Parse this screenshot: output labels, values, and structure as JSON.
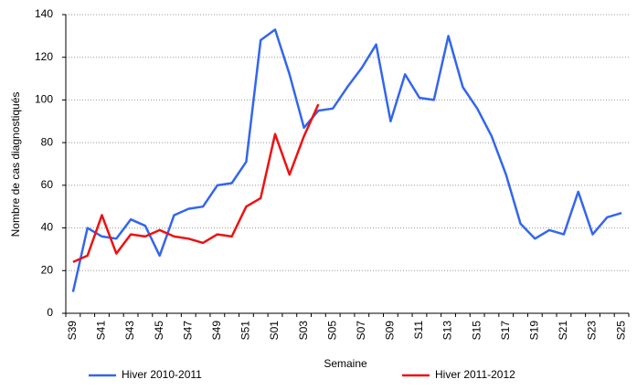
{
  "chart_data": {
    "type": "line",
    "xlabel": "Semaine",
    "ylabel": "Nombre de cas diagnostiqués",
    "categories": [
      "S39",
      null,
      "S41",
      null,
      "S43",
      null,
      "S45",
      null,
      "S47",
      null,
      "S49",
      null,
      "S51",
      null,
      "S01",
      null,
      "S03",
      null,
      "S05",
      null,
      "S07",
      null,
      "S09",
      null,
      "S11",
      null,
      "S13",
      null,
      "S15",
      null,
      "S17",
      null,
      "S19",
      null,
      "S21",
      null,
      "S23",
      null,
      "S25"
    ],
    "series": [
      {
        "name": "Hiver 2010-2011",
        "color": "#3366ee",
        "values": [
          10,
          40,
          36,
          35,
          44,
          41,
          27,
          46,
          49,
          50,
          60,
          61,
          71,
          128,
          133,
          112,
          87,
          95,
          96,
          106,
          115,
          126,
          90,
          112,
          101,
          100,
          130,
          106,
          96,
          83,
          65,
          42,
          35,
          39,
          37,
          57,
          37,
          45,
          47
        ]
      },
      {
        "name": "Hiver 2011-2012",
        "color": "#ee1111",
        "values": [
          24,
          27,
          46,
          28,
          37,
          36,
          39,
          36,
          35,
          33,
          37,
          36,
          50,
          54,
          84,
          65,
          83,
          98,
          null,
          null,
          null,
          null,
          null,
          null,
          null,
          null,
          null,
          null,
          null,
          null,
          null,
          null,
          null,
          null,
          null,
          null,
          null,
          null,
          null
        ]
      }
    ],
    "ylim": [
      0,
      140
    ],
    "yticks": [
      0,
      20,
      40,
      60,
      80,
      100,
      120,
      140
    ],
    "grid": true,
    "legend": "bottom"
  }
}
